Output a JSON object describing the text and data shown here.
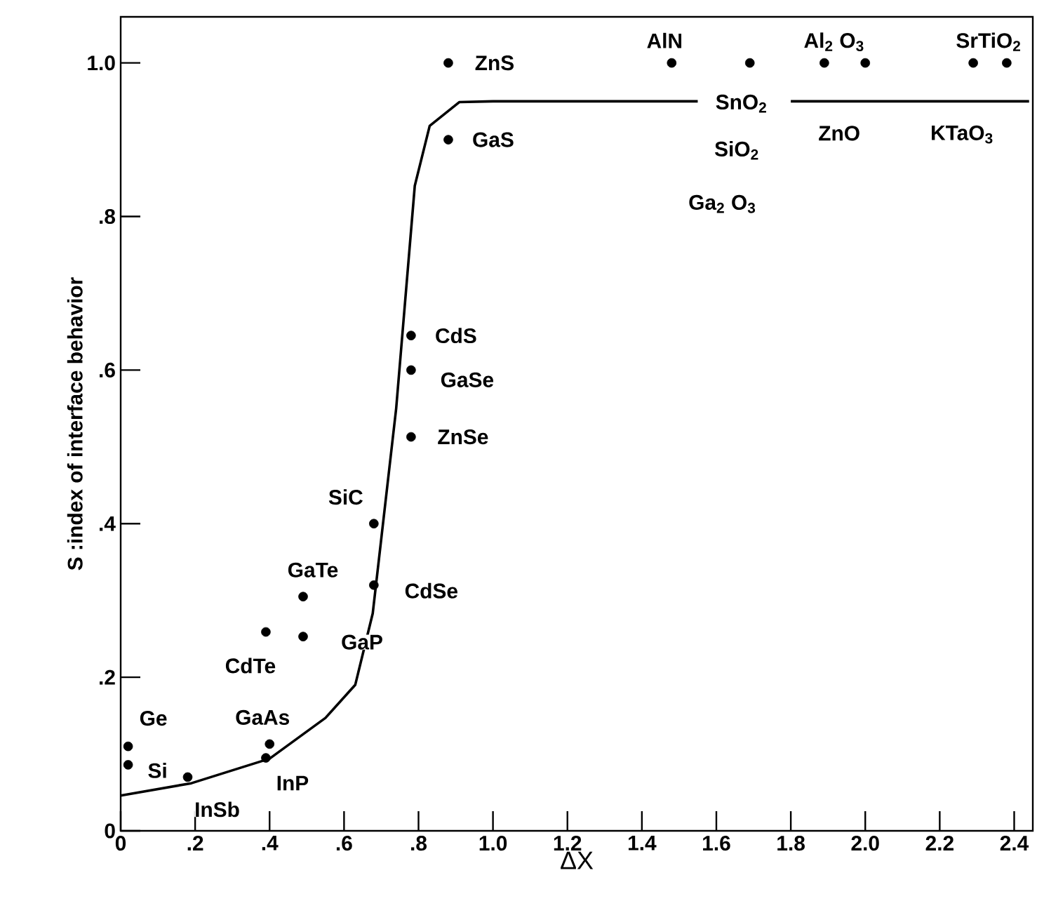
{
  "chart_data": {
    "type": "scatter",
    "xlabel": "ΔX",
    "ylabel": "S :index of interface behavior",
    "xlim": [
      0,
      2.45
    ],
    "ylim": [
      0,
      1.06
    ],
    "xticks": [
      0,
      {
        "value": 0.2,
        "label": ".2"
      },
      {
        "value": 0.4,
        "label": ".4"
      },
      {
        "value": 0.6,
        "label": ".6"
      },
      {
        "value": 0.8,
        "label": ".8"
      },
      {
        "value": 1.0,
        "label": "1.0"
      },
      {
        "value": 1.2,
        "label": "1.2"
      },
      {
        "value": 1.4,
        "label": "1.4"
      },
      {
        "value": 1.6,
        "label": "1.6"
      },
      {
        "value": 1.8,
        "label": "1.8"
      },
      {
        "value": 2.0,
        "label": "2.0"
      },
      {
        "value": 2.2,
        "label": "2.2"
      },
      {
        "value": 2.4,
        "label": "2.4"
      }
    ],
    "yticks": [
      0,
      {
        "value": 0.2,
        "label": ".2"
      },
      {
        "value": 0.4,
        "label": ".4"
      },
      {
        "value": 0.6,
        "label": ".6"
      },
      {
        "value": 0.8,
        "label": ".8"
      },
      {
        "value": 1.0,
        "label": "1.0"
      }
    ],
    "series": [
      {
        "color": "#000000",
        "marker": "circle",
        "x": [
          0.88,
          0.88,
          0.78,
          0.78,
          0.78,
          0.68,
          0.68,
          0.49,
          0.49,
          0.39,
          0.02,
          0.02,
          0.18,
          0.4,
          0.39,
          1.48,
          1.69,
          1.89,
          2.0,
          2.29,
          2.38
        ],
        "values": [
          1.0,
          0.9,
          0.645,
          0.6,
          0.513,
          0.4,
          0.32,
          0.305,
          0.253,
          0.259,
          0.11,
          0.086,
          0.07,
          0.113,
          0.095,
          1.0,
          1.0,
          1.0,
          1.0,
          1.0,
          1.0
        ]
      },
      {
        "type": "line",
        "color": "#000000",
        "marker": "none",
        "line_style": "solid",
        "x": [
          0,
          0.19,
          0.4,
          0.55,
          0.63,
          0.677,
          0.74,
          0.79,
          0.83,
          0.91,
          1.0,
          1.55,
          1.67,
          1.8,
          2.44
        ],
        "values": [
          0.046,
          0.062,
          0.094,
          0.147,
          0.19,
          0.283,
          0.55,
          0.84,
          0.918,
          0.949,
          0.95,
          0.95,
          null,
          0.95,
          0.95
        ]
      }
    ],
    "annotations": [
      {
        "text": "ZnS",
        "x": 0.88,
        "y": 1.0
      },
      {
        "text": "GaS",
        "x": 0.88,
        "y": 0.9
      },
      {
        "text": "CdS",
        "x": 0.78,
        "y": 0.645
      },
      {
        "text": "GaSe",
        "x": 0.78,
        "y": 0.6
      },
      {
        "text": "ZnSe",
        "x": 0.78,
        "y": 0.513
      },
      {
        "text": "SiC",
        "x": 0.68,
        "y": 0.4
      },
      {
        "text": "CdSe",
        "x": 0.68,
        "y": 0.32
      },
      {
        "text": "GaTe",
        "x": 0.49,
        "y": 0.305
      },
      {
        "text": "GaP",
        "x": 0.49,
        "y": 0.253
      },
      {
        "text": "CdTe",
        "x": 0.39,
        "y": 0.259
      },
      {
        "text": "Ge",
        "x": 0.02,
        "y": 0.11
      },
      {
        "text": "Si",
        "x": 0.02,
        "y": 0.086
      },
      {
        "text": "InSb",
        "x": 0.18,
        "y": 0.07
      },
      {
        "text": "GaAs",
        "x": 0.4,
        "y": 0.113
      },
      {
        "text": "InP",
        "x": 0.39,
        "y": 0.095
      },
      {
        "text": "AlN",
        "x": 1.48,
        "y": 1.0
      },
      {
        "text": "Al$_{2}$ O$_{3}$",
        "x": 1.89,
        "y": 1.0
      },
      {
        "text": "SrTiO$_{2}$",
        "x": 2.29,
        "y": 1.0
      },
      {
        "text": "SnO$_{2}$",
        "x": 1.69,
        "y": 1.0
      },
      "SiO$_{2}$",
      "Ga$_{2}$ O$_{3}$",
      "ZnO",
      {
        "text": "KTaO$_{3}$",
        "x": 2.29,
        "y": 1.0
      }
    ]
  }
}
